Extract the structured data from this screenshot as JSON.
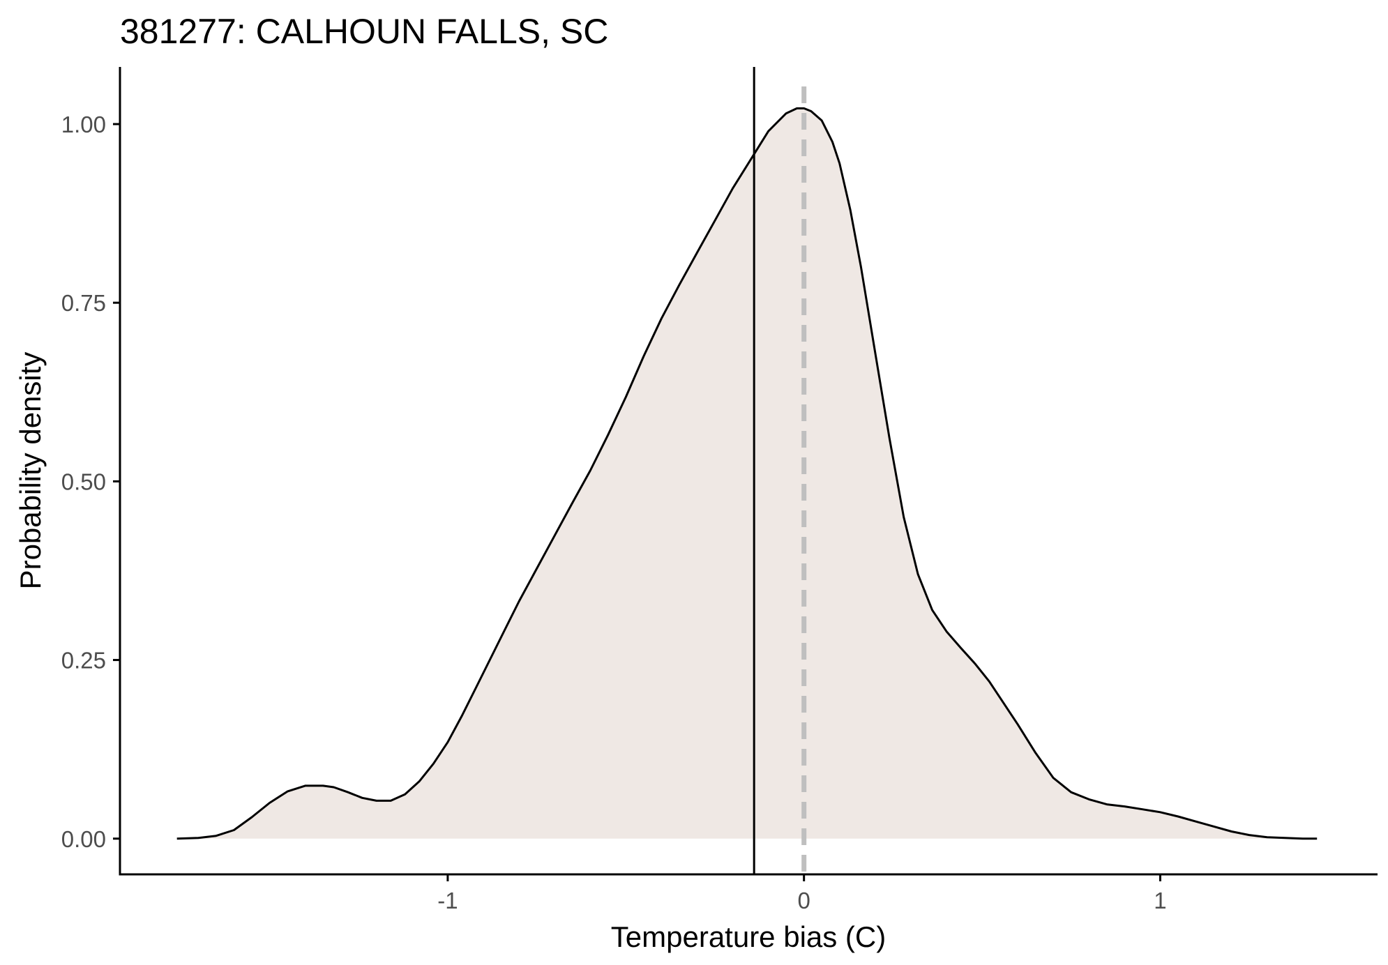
{
  "chart_data": {
    "type": "area",
    "title": "381277: CALHOUN FALLS, SC",
    "xlabel": "Temperature bias (C)",
    "ylabel": "Probability density",
    "xlim": [
      -1.92,
      1.61
    ],
    "ylim": [
      -0.05,
      1.08
    ],
    "x_ticks": [
      {
        "value": -1,
        "label": "-1"
      },
      {
        "value": 0,
        "label": "0"
      },
      {
        "value": 1,
        "label": "1"
      }
    ],
    "y_ticks": [
      {
        "value": 0,
        "label": "0.00"
      },
      {
        "value": 0.25,
        "label": "0.25"
      },
      {
        "value": 0.5,
        "label": "0.50"
      },
      {
        "value": 0.75,
        "label": "0.75"
      },
      {
        "value": 1,
        "label": "1.00"
      }
    ],
    "grid": false,
    "legend": "none",
    "density": {
      "x": [
        -1.76,
        -1.7,
        -1.65,
        -1.6,
        -1.55,
        -1.5,
        -1.45,
        -1.4,
        -1.35,
        -1.32,
        -1.28,
        -1.24,
        -1.2,
        -1.16,
        -1.12,
        -1.08,
        -1.04,
        -1.0,
        -0.96,
        -0.92,
        -0.88,
        -0.84,
        -0.8,
        -0.75,
        -0.7,
        -0.65,
        -0.6,
        -0.55,
        -0.5,
        -0.45,
        -0.4,
        -0.35,
        -0.3,
        -0.25,
        -0.2,
        -0.15,
        -0.1,
        -0.05,
        -0.02,
        0.0,
        0.02,
        0.05,
        0.08,
        0.1,
        0.13,
        0.16,
        0.2,
        0.24,
        0.28,
        0.32,
        0.36,
        0.4,
        0.44,
        0.48,
        0.52,
        0.56,
        0.6,
        0.65,
        0.7,
        0.75,
        0.8,
        0.85,
        0.9,
        0.95,
        1.0,
        1.05,
        1.1,
        1.15,
        1.2,
        1.25,
        1.3,
        1.35,
        1.4,
        1.44
      ],
      "y": [
        0.0,
        0.001,
        0.004,
        0.012,
        0.03,
        0.05,
        0.066,
        0.074,
        0.074,
        0.072,
        0.065,
        0.057,
        0.053,
        0.053,
        0.062,
        0.08,
        0.105,
        0.135,
        0.172,
        0.212,
        0.252,
        0.292,
        0.332,
        0.378,
        0.424,
        0.47,
        0.515,
        0.565,
        0.618,
        0.675,
        0.728,
        0.775,
        0.82,
        0.865,
        0.91,
        0.95,
        0.99,
        1.015,
        1.022,
        1.022,
        1.018,
        1.005,
        0.975,
        0.945,
        0.88,
        0.8,
        0.68,
        0.56,
        0.45,
        0.37,
        0.32,
        0.29,
        0.267,
        0.245,
        0.22,
        0.19,
        0.16,
        0.12,
        0.085,
        0.065,
        0.055,
        0.048,
        0.045,
        0.041,
        0.037,
        0.031,
        0.024,
        0.017,
        0.01,
        0.005,
        0.002,
        0.001,
        0.0,
        0.0
      ],
      "fill_color": "#efe8e4",
      "line_color": "#000000"
    },
    "reference_lines": [
      {
        "type": "vline",
        "x": -0.14,
        "style": "solid",
        "color": "#000000"
      },
      {
        "type": "vline",
        "x": 0,
        "style": "dashed",
        "color": "#bfbfbf"
      }
    ]
  }
}
